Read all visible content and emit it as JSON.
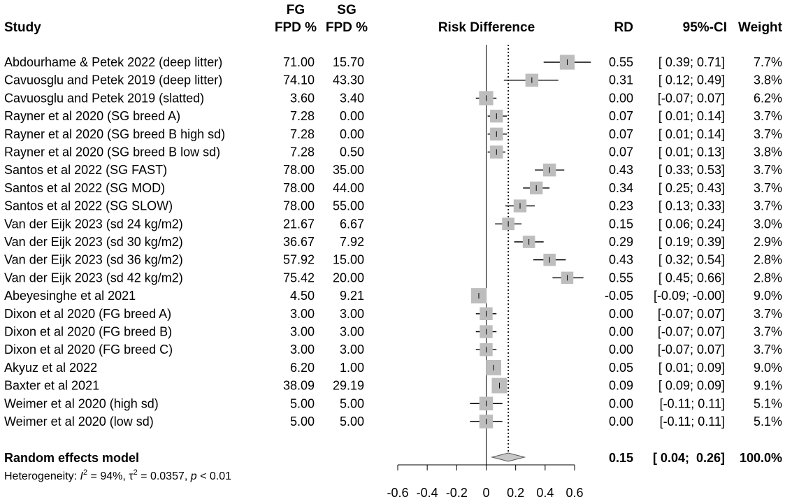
{
  "chart_data": {
    "type": "forest",
    "columns": {
      "study": "Study",
      "fg": [
        "FG",
        "FPD %"
      ],
      "sg": [
        "SG",
        "FPD %"
      ],
      "plot": "Risk Difference",
      "rd": "RD",
      "ci": "95%-CI",
      "weight": "Weight"
    },
    "studies": [
      {
        "label": "Abdourhame & Petek 2022 (deep litter)",
        "fg": "71.00",
        "sg": "15.70",
        "rd": 0.55,
        "lo": 0.39,
        "hi": 0.71,
        "rd_text": "0.55",
        "ci_text": "[ 0.39;  0.71]",
        "weight": 7.7,
        "weight_text": "7.7%"
      },
      {
        "label": "Cavuosglu and Petek 2019 (deep litter)",
        "fg": "74.10",
        "sg": "43.30",
        "rd": 0.31,
        "lo": 0.12,
        "hi": 0.49,
        "rd_text": "0.31",
        "ci_text": "[ 0.12;  0.49]",
        "weight": 3.8,
        "weight_text": "3.8%"
      },
      {
        "label": "Cavuosglu and Petek 2019 (slatted)",
        "fg": "3.60",
        "sg": "3.40",
        "rd": 0.0,
        "lo": -0.07,
        "hi": 0.07,
        "rd_text": "0.00",
        "ci_text": "[-0.07;  0.07]",
        "weight": 6.2,
        "weight_text": "6.2%"
      },
      {
        "label": "Rayner et al 2020 (SG breed A)",
        "fg": "7.28",
        "sg": "0.00",
        "rd": 0.07,
        "lo": 0.01,
        "hi": 0.14,
        "rd_text": "0.07",
        "ci_text": "[ 0.01;  0.14]",
        "weight": 3.7,
        "weight_text": "3.7%"
      },
      {
        "label": "Rayner et al 2020 (SG breed B high sd)",
        "fg": "7.28",
        "sg": "0.00",
        "rd": 0.07,
        "lo": 0.01,
        "hi": 0.14,
        "rd_text": "0.07",
        "ci_text": "[ 0.01;  0.14]",
        "weight": 3.7,
        "weight_text": "3.7%"
      },
      {
        "label": "Rayner et al 2020 (SG breed B low sd)",
        "fg": "7.28",
        "sg": "0.50",
        "rd": 0.07,
        "lo": 0.01,
        "hi": 0.13,
        "rd_text": "0.07",
        "ci_text": "[ 0.01;  0.13]",
        "weight": 3.8,
        "weight_text": "3.8%"
      },
      {
        "label": "Santos et al 2022 (SG FAST)",
        "fg": "78.00",
        "sg": "35.00",
        "rd": 0.43,
        "lo": 0.33,
        "hi": 0.53,
        "rd_text": "0.43",
        "ci_text": "[ 0.33;  0.53]",
        "weight": 3.7,
        "weight_text": "3.7%"
      },
      {
        "label": "Santos et al 2022 (SG MOD)",
        "fg": "78.00",
        "sg": "44.00",
        "rd": 0.34,
        "lo": 0.25,
        "hi": 0.43,
        "rd_text": "0.34",
        "ci_text": "[ 0.25;  0.43]",
        "weight": 3.7,
        "weight_text": "3.7%"
      },
      {
        "label": "Santos et al 2022 (SG SLOW)",
        "fg": "78.00",
        "sg": "55.00",
        "rd": 0.23,
        "lo": 0.13,
        "hi": 0.33,
        "rd_text": "0.23",
        "ci_text": "[ 0.13;  0.33]",
        "weight": 3.7,
        "weight_text": "3.7%"
      },
      {
        "label": "Van der Eijk 2023 (sd 24 kg/m2)",
        "fg": "21.67",
        "sg": "6.67",
        "rd": 0.15,
        "lo": 0.06,
        "hi": 0.24,
        "rd_text": "0.15",
        "ci_text": "[ 0.06;  0.24]",
        "weight": 3.0,
        "weight_text": "3.0%"
      },
      {
        "label": "Van der Eijk 2023 (sd 30 kg/m2)",
        "fg": "36.67",
        "sg": "7.92",
        "rd": 0.29,
        "lo": 0.19,
        "hi": 0.39,
        "rd_text": "0.29",
        "ci_text": "[ 0.19;  0.39]",
        "weight": 2.9,
        "weight_text": "2.9%"
      },
      {
        "label": "Van der Eijk 2023 (sd 36 kg/m2)",
        "fg": "57.92",
        "sg": "15.00",
        "rd": 0.43,
        "lo": 0.32,
        "hi": 0.54,
        "rd_text": "0.43",
        "ci_text": "[ 0.32;  0.54]",
        "weight": 2.8,
        "weight_text": "2.8%"
      },
      {
        "label": "Van der Eijk 2023 (sd 42 kg/m2)",
        "fg": "75.42",
        "sg": "20.00",
        "rd": 0.55,
        "lo": 0.45,
        "hi": 0.66,
        "rd_text": "0.55",
        "ci_text": "[ 0.45;  0.66]",
        "weight": 2.8,
        "weight_text": "2.8%"
      },
      {
        "label": "Abeyesinghe et al 2021",
        "fg": "4.50",
        "sg": "9.21",
        "rd": -0.05,
        "lo": -0.09,
        "hi": -0.0,
        "rd_text": "-0.05",
        "ci_text": "[-0.09; -0.00]",
        "weight": 9.0,
        "weight_text": "9.0%"
      },
      {
        "label": "Dixon et al 2020 (FG breed A)",
        "fg": "3.00",
        "sg": "3.00",
        "rd": 0.0,
        "lo": -0.07,
        "hi": 0.07,
        "rd_text": "0.00",
        "ci_text": "[-0.07;  0.07]",
        "weight": 3.7,
        "weight_text": "3.7%"
      },
      {
        "label": "Dixon et al 2020 (FG breed B)",
        "fg": "3.00",
        "sg": "3.00",
        "rd": 0.0,
        "lo": -0.07,
        "hi": 0.07,
        "rd_text": "0.00",
        "ci_text": "[-0.07;  0.07]",
        "weight": 3.7,
        "weight_text": "3.7%"
      },
      {
        "label": "Dixon et al 2020 (FG breed C)",
        "fg": "3.00",
        "sg": "3.00",
        "rd": 0.0,
        "lo": -0.07,
        "hi": 0.07,
        "rd_text": "0.00",
        "ci_text": "[-0.07;  0.07]",
        "weight": 3.7,
        "weight_text": "3.7%"
      },
      {
        "label": "Akyuz et al 2022",
        "fg": "6.20",
        "sg": "1.00",
        "rd": 0.05,
        "lo": 0.01,
        "hi": 0.09,
        "rd_text": "0.05",
        "ci_text": "[ 0.01;  0.09]",
        "weight": 9.0,
        "weight_text": "9.0%"
      },
      {
        "label": "Baxter et al 2021",
        "fg": "38.09",
        "sg": "29.19",
        "rd": 0.09,
        "lo": 0.09,
        "hi": 0.09,
        "rd_text": "0.09",
        "ci_text": "[ 0.09;  0.09]",
        "weight": 9.1,
        "weight_text": "9.1%"
      },
      {
        "label": "Weimer et al 2020 (high sd)",
        "fg": "5.00",
        "sg": "5.00",
        "rd": 0.0,
        "lo": -0.11,
        "hi": 0.11,
        "rd_text": "0.00",
        "ci_text": "[-0.11;  0.11]",
        "weight": 5.1,
        "weight_text": "5.1%"
      },
      {
        "label": "Weimer et al 2020 (low sd)",
        "fg": "5.00",
        "sg": "5.00",
        "rd": 0.0,
        "lo": -0.11,
        "hi": 0.11,
        "rd_text": "0.00",
        "ci_text": "[-0.11;  0.11]",
        "weight": 5.1,
        "weight_text": "5.1%"
      }
    ],
    "summary": {
      "label": "Random effects model",
      "rd": 0.15,
      "lo": 0.04,
      "hi": 0.26,
      "rd_text": "0.15",
      "ci_text": "[ 0.04;  0.26]",
      "weight_text": "100.0%"
    },
    "heterogeneity": {
      "prefix": "Heterogeneity: ",
      "i2_label": "I",
      "i2_value": " = 94%, ",
      "tau_label": "τ",
      "tau_value": " = 0.0357, ",
      "p_label": "p",
      "p_value": " < 0.01"
    },
    "x_axis": {
      "range": [
        -0.6,
        0.6
      ],
      "ticks": [
        -0.6,
        -0.4,
        -0.2,
        0,
        0.2,
        0.4,
        0.6
      ],
      "tick_labels": [
        "-0.6",
        "-0.4",
        "-0.2",
        "0",
        "0.2",
        "0.4",
        "0.6"
      ],
      "null_line": 0
    },
    "colors": {
      "box": "#bdbdbd",
      "diamond": "#c8c8c8",
      "line": "#000000"
    }
  }
}
